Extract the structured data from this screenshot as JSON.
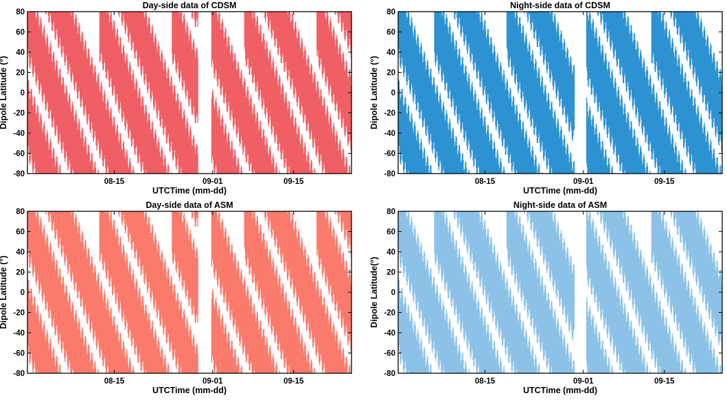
{
  "chart_data": [
    {
      "type": "scatter",
      "title": "Day-side data of CDSM",
      "xlabel": "UTCTime (mm-dd)",
      "ylabel": "Dipole Latitude (°)",
      "xlim": [
        0,
        56
      ],
      "ylim": [
        -80,
        80
      ],
      "xticks": [
        {
          "value": 15,
          "label": "08-15"
        },
        {
          "value": 32,
          "label": "09-01"
        },
        {
          "value": 46,
          "label": "09-15"
        }
      ],
      "yticks": [
        -80,
        -60,
        -40,
        -20,
        0,
        20,
        40,
        60,
        80
      ],
      "color": "#ef5f65",
      "band_phase": 0,
      "gaps": [
        [
          29.5,
          31.8
        ]
      ]
    },
    {
      "type": "scatter",
      "title": "Night-side data of CDSM",
      "xlabel": "UTCTime (mm-dd)",
      "ylabel": "Dipole Latitude (°)",
      "xlim": [
        0,
        56
      ],
      "ylim": [
        -80,
        80
      ],
      "xticks": [
        {
          "value": 15,
          "label": "08-15"
        },
        {
          "value": 32,
          "label": "09-01"
        },
        {
          "value": 46,
          "label": "09-15"
        }
      ],
      "yticks": [
        -80,
        -60,
        -40,
        -20,
        0,
        20,
        40,
        60,
        80
      ],
      "color": "#2d92d2",
      "band_phase": 0.5,
      "gaps": [
        [
          30.5,
          32.5
        ]
      ]
    },
    {
      "type": "scatter",
      "title": "Day-side data of ASM",
      "xlabel": "UTCTime (mm-dd)",
      "ylabel": "Dipole Latitude (°)",
      "xlim": [
        0,
        56
      ],
      "ylim": [
        -80,
        80
      ],
      "xticks": [
        {
          "value": 15,
          "label": "08-15"
        },
        {
          "value": 32,
          "label": "09-01"
        },
        {
          "value": 46,
          "label": "09-15"
        }
      ],
      "yticks": [
        -80,
        -60,
        -40,
        -20,
        0,
        20,
        40,
        60,
        80
      ],
      "color": "#fa7a6c",
      "band_phase": 0,
      "gaps": [
        [
          29.5,
          31.8
        ]
      ]
    },
    {
      "type": "scatter",
      "title": "Night-side data of ASM",
      "xlabel": "UTCTime (mm-dd)",
      "ylabel": "Dipole Latitude(°)",
      "xlim": [
        0,
        56
      ],
      "ylim": [
        -80,
        80
      ],
      "xticks": [
        {
          "value": 15,
          "label": "08-15"
        },
        {
          "value": 32,
          "label": "09-01"
        },
        {
          "value": 46,
          "label": "09-15"
        }
      ],
      "yticks": [
        -80,
        -60,
        -40,
        -20,
        0,
        20,
        40,
        60,
        80
      ],
      "color": "#8cc2e8",
      "band_phase": 0.5,
      "gaps": [
        [
          30.5,
          32.5
        ]
      ]
    }
  ]
}
